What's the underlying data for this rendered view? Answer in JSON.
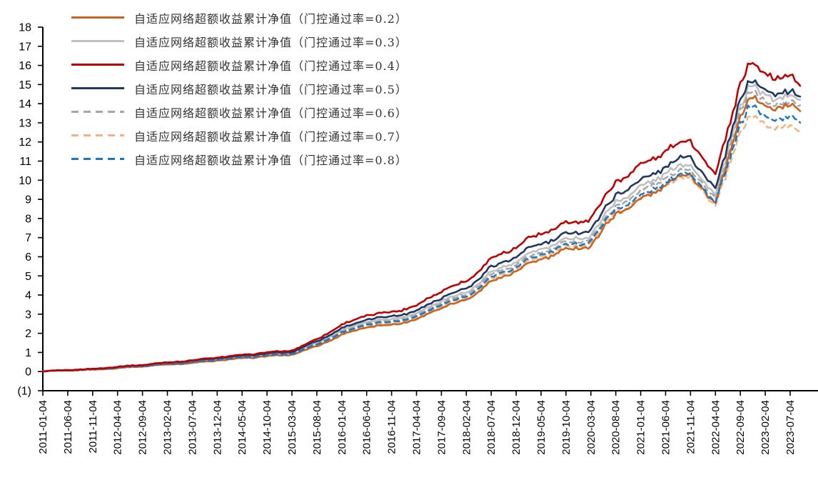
{
  "page": {
    "background": "#FFFFFF"
  },
  "chart_data": {
    "type": "line",
    "title": "",
    "xlabel": "",
    "ylabel": "",
    "grid": false,
    "legend_position": "top-left",
    "axis_color": "#000000",
    "ylim": [
      -1,
      18
    ],
    "y_ticks": [
      "18",
      "17",
      "16",
      "15",
      "14",
      "13",
      "12",
      "11",
      "10",
      "9",
      "8",
      "7",
      "6",
      "5",
      "4",
      "3",
      "2",
      "1",
      "0",
      "(1)"
    ],
    "y_tick_values": [
      18,
      17,
      16,
      15,
      14,
      13,
      12,
      11,
      10,
      9,
      8,
      7,
      6,
      5,
      4,
      3,
      2,
      1,
      0,
      -1
    ],
    "x_tick_labels": [
      "2011-01-04",
      "2011-06-04",
      "2011-11-04",
      "2012-04-04",
      "2012-09-04",
      "2013-02-04",
      "2013-07-04",
      "2013-12-04",
      "2014-05-04",
      "2014-10-04",
      "2015-03-04",
      "2015-08-04",
      "2016-01-04",
      "2016-06-04",
      "2016-11-04",
      "2017-04-04",
      "2017-09-04",
      "2018-02-04",
      "2018-07-04",
      "2018-12-04",
      "2019-05-04",
      "2019-10-04",
      "2020-03-04",
      "2020-08-04",
      "2021-01-04",
      "2021-06-04",
      "2021-11-04",
      "2022-04-04",
      "2022-09-04",
      "2023-02-04",
      "2023-07-04"
    ],
    "x_months": [
      0,
      5,
      10,
      15,
      20,
      25,
      30,
      35,
      40,
      45,
      50,
      55,
      60,
      65,
      70,
      75,
      80,
      85,
      90,
      95,
      100,
      105,
      110,
      115,
      120,
      125,
      130,
      135,
      140,
      142,
      145,
      150,
      152
    ],
    "series": [
      {
        "label": "自适应网络超额收益累计净值（门控通过率=0.2）",
        "color": "#C8641E",
        "dashed": false,
        "values": [
          0.0,
          0.06,
          0.11,
          0.18,
          0.26,
          0.37,
          0.46,
          0.58,
          0.67,
          0.8,
          0.9,
          1.33,
          1.88,
          2.32,
          2.48,
          2.72,
          3.33,
          3.72,
          4.75,
          5.28,
          5.82,
          6.32,
          6.65,
          8.3,
          8.85,
          9.75,
          10.5,
          8.7,
          13.3,
          14.1,
          13.9,
          13.8,
          13.9
        ]
      },
      {
        "label": "自适应网络超额收益累计净值（门控通过率=0.3）",
        "color": "#BFBFBF",
        "dashed": false,
        "values": [
          0.0,
          0.07,
          0.13,
          0.22,
          0.3,
          0.43,
          0.53,
          0.66,
          0.76,
          0.9,
          1.0,
          1.5,
          2.12,
          2.6,
          2.78,
          3.03,
          3.7,
          4.12,
          5.25,
          5.8,
          6.35,
          6.85,
          7.2,
          8.95,
          9.5,
          10.35,
          11.05,
          9.15,
          13.85,
          14.7,
          14.45,
          14.3,
          14.4
        ]
      },
      {
        "label": "自适应网络超额收益累计净值（门控通过率=0.4）",
        "color": "#C00000",
        "dashed": false,
        "values": [
          0.0,
          0.08,
          0.15,
          0.25,
          0.34,
          0.48,
          0.6,
          0.74,
          0.85,
          1.0,
          1.12,
          1.7,
          2.4,
          2.95,
          3.15,
          3.45,
          4.2,
          4.7,
          5.95,
          6.55,
          7.15,
          7.7,
          8.1,
          10.0,
          10.6,
          11.5,
          12.3,
          10.2,
          15.0,
          15.85,
          15.6,
          15.35,
          15.2
        ]
      },
      {
        "label": "自适应网络超额收益累计净值（门控通过率=0.5）",
        "color": "#1F3864",
        "dashed": false,
        "values": [
          0.0,
          0.08,
          0.14,
          0.24,
          0.32,
          0.45,
          0.56,
          0.7,
          0.8,
          0.94,
          1.05,
          1.58,
          2.22,
          2.73,
          2.92,
          3.18,
          3.86,
          4.32,
          5.5,
          6.05,
          6.62,
          7.12,
          7.5,
          9.3,
          9.85,
          10.7,
          11.45,
          9.5,
          14.2,
          15.0,
          14.75,
          14.55,
          14.65
        ]
      },
      {
        "label": "自适应网络超额收益累计净值（门控通过率=0.6）",
        "color": "#A6A6A6",
        "dashed": true,
        "values": [
          0.0,
          0.07,
          0.12,
          0.21,
          0.29,
          0.41,
          0.51,
          0.64,
          0.73,
          0.87,
          0.97,
          1.45,
          2.05,
          2.52,
          2.7,
          2.94,
          3.58,
          4.0,
          5.1,
          5.62,
          6.18,
          6.68,
          7.02,
          8.7,
          9.25,
          10.1,
          10.8,
          8.95,
          13.55,
          14.4,
          14.15,
          14.0,
          14.1
        ]
      },
      {
        "label": "自适应网络超额收益累计净值（门控通过率=0.7）",
        "color": "#F4B183",
        "dashed": true,
        "values": [
          0.0,
          0.06,
          0.11,
          0.19,
          0.27,
          0.39,
          0.48,
          0.6,
          0.69,
          0.83,
          0.93,
          1.38,
          1.95,
          2.4,
          2.57,
          2.8,
          3.42,
          3.82,
          4.88,
          5.4,
          5.95,
          6.45,
          6.78,
          8.4,
          8.9,
          9.7,
          10.4,
          8.55,
          12.45,
          13.15,
          12.9,
          12.75,
          12.8
        ]
      },
      {
        "label": "自适应网络超额收益累计净值（门控通过率=0.8）",
        "color": "#1B79C4",
        "dashed": true,
        "values": [
          0.0,
          0.06,
          0.12,
          0.2,
          0.28,
          0.4,
          0.5,
          0.62,
          0.71,
          0.85,
          0.95,
          1.42,
          2.0,
          2.46,
          2.63,
          2.87,
          3.5,
          3.9,
          4.98,
          5.5,
          6.05,
          6.55,
          6.9,
          8.55,
          9.05,
          9.9,
          10.6,
          8.75,
          12.9,
          13.65,
          13.4,
          13.25,
          13.3
        ]
      }
    ]
  }
}
